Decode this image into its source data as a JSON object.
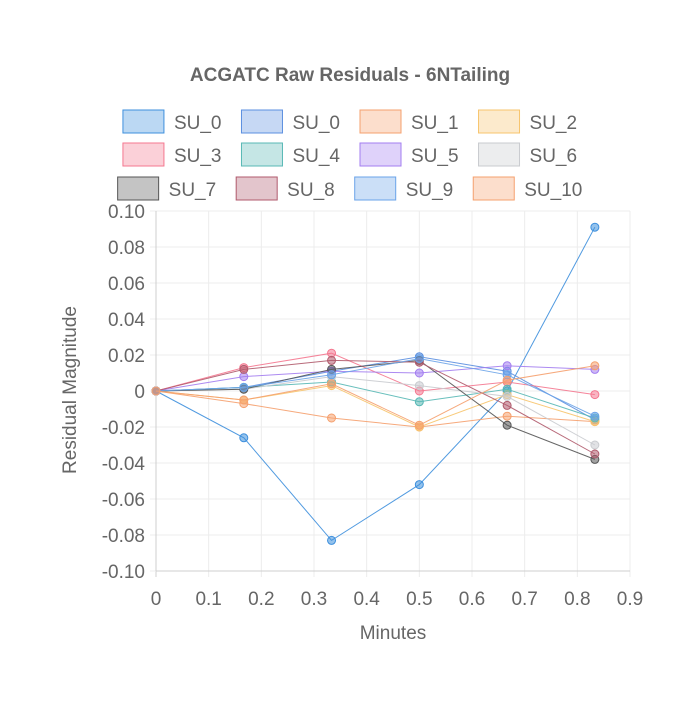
{
  "chart_data": {
    "type": "line",
    "title": "ACGATC Raw Residuals - 6NTailing",
    "xlabel": "Minutes",
    "ylabel": "Residual Magnitude",
    "xlim": [
      0,
      0.9
    ],
    "ylim": [
      -0.1,
      0.1
    ],
    "x_ticks": [
      "0",
      "0.1",
      "0.2",
      "0.3",
      "0.4",
      "0.5",
      "0.6",
      "0.7",
      "0.8",
      "0.9"
    ],
    "y_ticks": [
      "0.10",
      "0.08",
      "0.06",
      "0.04",
      "0.02",
      "0",
      "-0.02",
      "-0.04",
      "-0.06",
      "-0.08",
      "-0.10"
    ],
    "grid": true,
    "legend_position": "top",
    "x": [
      0,
      0.1667,
      0.3333,
      0.5,
      0.6667,
      0.8333
    ],
    "series": [
      {
        "name": "SU_0",
        "color": "#3d8fdd",
        "values": [
          0,
          -0.026,
          -0.083,
          -0.052,
          0.0,
          0.091
        ]
      },
      {
        "name": "SU_0",
        "color": "#5b8fe0",
        "values": [
          0,
          0.002,
          0.011,
          0.019,
          0.011,
          -0.016
        ]
      },
      {
        "name": "SU_1",
        "color": "#f5a06e",
        "values": [
          0,
          -0.007,
          -0.015,
          -0.02,
          -0.014,
          -0.017
        ]
      },
      {
        "name": "SU_2",
        "color": "#f7c46c",
        "values": [
          0,
          -0.005,
          0.003,
          -0.02,
          -0.002,
          -0.017
        ]
      },
      {
        "name": "SU_3",
        "color": "#f4778f",
        "values": [
          0,
          0.013,
          0.021,
          0.0,
          0.005,
          -0.002
        ]
      },
      {
        "name": "SU_4",
        "color": "#58b8b5",
        "values": [
          0,
          0.002,
          0.005,
          -0.006,
          0.001,
          -0.015
        ]
      },
      {
        "name": "SU_5",
        "color": "#a37df0",
        "values": [
          0,
          0.008,
          0.011,
          0.01,
          0.014,
          0.012
        ]
      },
      {
        "name": "SU_6",
        "color": "#c9cbcf",
        "values": [
          0,
          0.001,
          0.008,
          0.003,
          -0.003,
          -0.03
        ]
      },
      {
        "name": "SU_7",
        "color": "#555555",
        "values": [
          0,
          0.001,
          0.012,
          0.017,
          -0.019,
          -0.038
        ]
      },
      {
        "name": "SU_8",
        "color": "#b05a6c",
        "values": [
          0,
          0.012,
          0.017,
          0.016,
          -0.008,
          -0.035
        ]
      },
      {
        "name": "SU_9",
        "color": "#6aa3e8",
        "values": [
          0,
          0.002,
          0.009,
          0.018,
          0.009,
          -0.014
        ]
      },
      {
        "name": "SU_10",
        "color": "#f5a06e",
        "values": [
          0,
          -0.005,
          0.004,
          -0.019,
          0.006,
          0.014
        ]
      }
    ]
  }
}
